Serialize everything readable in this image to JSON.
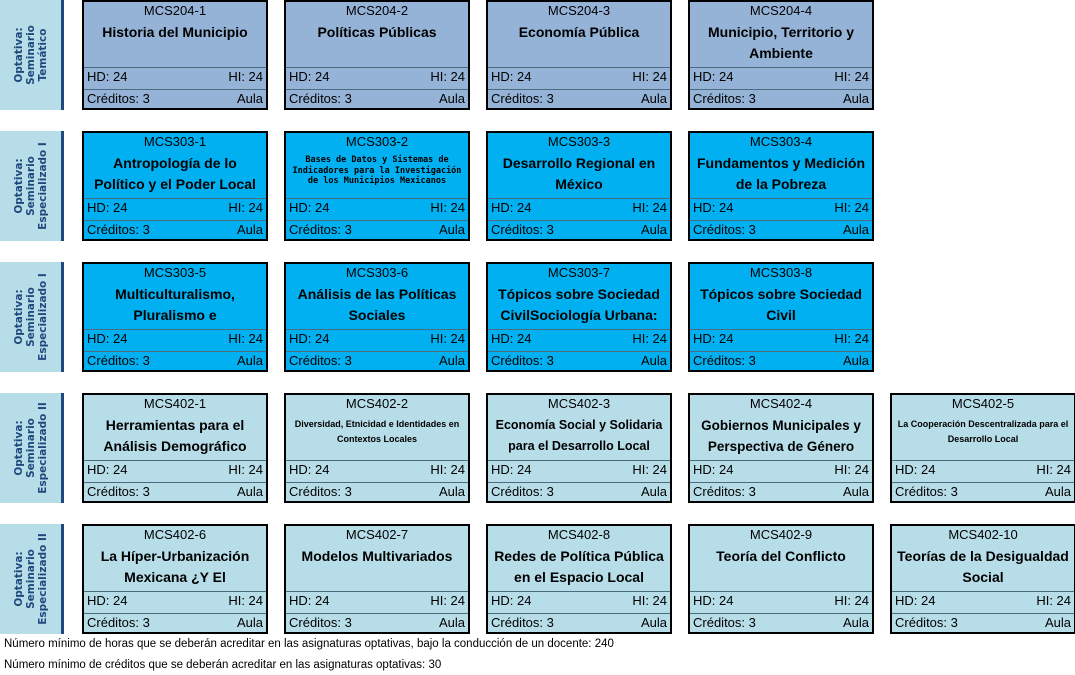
{
  "rows": [
    {
      "label_line1": "Optativa:",
      "label_line2": "Seminario",
      "label_line3": "Temático",
      "courses": [
        {
          "code": "MCS204-1",
          "name": "Historia del Municipio"
        },
        {
          "code": "MCS204-2",
          "name": "Políticas Públicas"
        },
        {
          "code": "MCS204-3",
          "name": "Economía Pública"
        },
        {
          "code": "MCS204-4",
          "name": "Municipio, Territorio y Ambiente"
        }
      ]
    },
    {
      "label_line1": "Optativa:",
      "label_line2": "Seminario",
      "label_line3": "Especializado I",
      "courses": [
        {
          "code": "MCS303-1",
          "name": "Antropología de lo Político y el Poder Local"
        },
        {
          "code": "MCS303-2",
          "name": "Bases de Datos y Sistemas de Indicadores para la Investigación de los Municipios Mexicanos"
        },
        {
          "code": "MCS303-3",
          "name": "Desarrollo Regional en México"
        },
        {
          "code": "MCS303-4",
          "name": "Fundamentos y Medición de la Pobreza"
        }
      ]
    },
    {
      "label_line1": "Optativa:",
      "label_line2": "Seminario",
      "label_line3": "Especializado I",
      "courses": [
        {
          "code": "MCS303-5",
          "name": "Multiculturalismo, Pluralismo e"
        },
        {
          "code": "MCS303-6",
          "name": "Análisis de las Políticas Sociales"
        },
        {
          "code": "MCS303-7",
          "name": "Tópicos sobre Sociedad CivilSociología Urbana:"
        },
        {
          "code": "MCS303-8",
          "name": "Tópicos sobre Sociedad Civil"
        }
      ]
    },
    {
      "label_line1": "Optativa:",
      "label_line2": "Seminario",
      "label_line3": "Especializado II",
      "courses": [
        {
          "code": "MCS402-1",
          "name": "Herramientas para el Análisis Demográfico"
        },
        {
          "code": "MCS402-2",
          "name": "Diversidad, Etnicidad e Identidades en Contextos Locales"
        },
        {
          "code": "MCS402-3",
          "name": "Economía Social y Solidaria para el Desarrollo Local"
        },
        {
          "code": "MCS402-4",
          "name": "Gobiernos Municipales y Perspectiva de Género"
        },
        {
          "code": "MCS402-5",
          "name": "La Cooperación Descentralizada para el Desarrollo Local"
        }
      ]
    },
    {
      "label_line1": "Optativa:",
      "label_line2": "Seminario",
      "label_line3": "Especializado II",
      "courses": [
        {
          "code": "MCS402-6",
          "name": "La Híper-Urbanización Mexicana ¿Y El"
        },
        {
          "code": "MCS402-7",
          "name": "Modelos Multivariados"
        },
        {
          "code": "MCS402-8",
          "name": "Redes de Política Pública en el Espacio Local"
        },
        {
          "code": "MCS402-9",
          "name": "Teoría del Conflicto"
        },
        {
          "code": "MCS402-10",
          "name": "Teorías de la Desigualdad Social"
        }
      ]
    }
  ],
  "common": {
    "hd": "HD: 24",
    "hi": "HI: 24",
    "credits": "Créditos: 3",
    "room": "Aula"
  },
  "footer": {
    "hours_note": "Número mínimo de horas que se deberán acreditar en las asignaturas optativas, bajo la conducción de un docente: 240",
    "credits_note": "Número mínimo de créditos que se deberán acreditar en las asignaturas optativas: 30"
  },
  "colors": {
    "row1": "#95b3d7",
    "row2": "#00b0f0",
    "row3": "#00b0f0",
    "row4": "#b7dde8",
    "row5": "#b7dde8",
    "label_bg": "#b7dde8",
    "label_text": "#1f497d"
  }
}
